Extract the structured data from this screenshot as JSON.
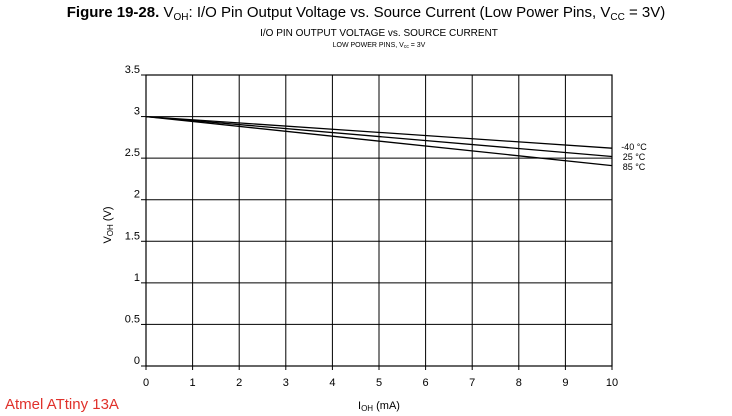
{
  "figure": {
    "label": "Figure 19-28.",
    "title_v": "V",
    "title_v_sub": "OH",
    "title_mid": ": I/O Pin Output Voltage vs. Source Current (Low Power Pins, V",
    "title_vcc_sub": "CC",
    "title_end": " = 3V)"
  },
  "chart_title": "I/O PIN OUTPUT VOLTAGE vs. SOURCE CURRENT",
  "chart_subtitle": {
    "main": "LOW POWER PINS, V",
    "sub": "cc",
    "end": " = 3V"
  },
  "watermark": "Atmel ATtiny 13A",
  "chart_data": {
    "type": "line",
    "xlabel": {
      "main": "I",
      "sub": "OH",
      "end": " (mA)"
    },
    "ylabel": {
      "main": "V",
      "sub": "OH",
      "end": " (V)"
    },
    "xlim": [
      0,
      10
    ],
    "ylim": [
      0,
      3.5
    ],
    "xticks": [
      "0",
      "1",
      "2",
      "3",
      "4",
      "5",
      "6",
      "7",
      "8",
      "9",
      "10"
    ],
    "yticks": [
      "0",
      "0.5",
      "1",
      "1.5",
      "2",
      "2.5",
      "3",
      "3.5"
    ],
    "grid": true,
    "legend_placement": "right",
    "series": [
      {
        "name": "-40 °C",
        "color": "#000000",
        "x": [
          0,
          10
        ],
        "y": [
          3.0,
          2.62
        ]
      },
      {
        "name": "25 °C",
        "color": "#000000",
        "x": [
          0,
          10
        ],
        "y": [
          3.0,
          2.52
        ]
      },
      {
        "name": "85 °C",
        "color": "#000000",
        "x": [
          0,
          10
        ],
        "y": [
          3.0,
          2.41
        ]
      }
    ]
  }
}
